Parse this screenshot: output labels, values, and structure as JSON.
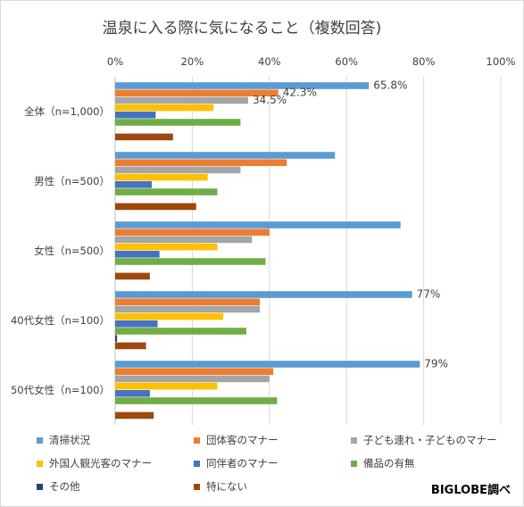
{
  "chart_data": {
    "type": "bar",
    "orientation": "horizontal",
    "title": "温泉に入る際に気になること（複数回答)",
    "categories": [
      "全体（n=1,000）",
      "男性（n=500）",
      "女性（n=500）",
      "40代女性（n=100）",
      "50代女性（n=100）"
    ],
    "xlim": [
      0,
      100
    ],
    "x_ticks": [
      "0%",
      "20%",
      "40%",
      "60%",
      "80%",
      "100%"
    ],
    "grid": true,
    "legend_position": "bottom",
    "series": [
      {
        "name": "清掃状況",
        "color": "#5b9bd5",
        "values": [
          65.8,
          57,
          74,
          77,
          79
        ]
      },
      {
        "name": "団体客のマナー",
        "color": "#ed7d31",
        "values": [
          42.3,
          44.5,
          40,
          37.5,
          41
        ]
      },
      {
        "name": "子ども連れ・子どものマナー",
        "color": "#a5a5a5",
        "values": [
          34.5,
          32.5,
          35.5,
          37.5,
          40
        ]
      },
      {
        "name": "外国人観光客のマナー",
        "color": "#ffc000",
        "values": [
          25.5,
          24,
          26.5,
          28,
          26.5
        ]
      },
      {
        "name": "同伴者のマナー",
        "color": "#4472c4",
        "values": [
          10.5,
          9.5,
          11.5,
          11,
          9
        ]
      },
      {
        "name": "備品の有無",
        "color": "#70ad47",
        "values": [
          32.5,
          26.5,
          39,
          34,
          42
        ]
      },
      {
        "name": "その他",
        "color": "#264478",
        "values": [
          0,
          0,
          0,
          0.5,
          0
        ]
      },
      {
        "name": "特にない",
        "color": "#9e480e",
        "values": [
          15,
          21,
          9,
          8,
          10
        ]
      }
    ],
    "data_labels": [
      {
        "category": 0,
        "series": 0,
        "text": "65.8%"
      },
      {
        "category": 0,
        "series": 1,
        "text": "42.3%"
      },
      {
        "category": 0,
        "series": 2,
        "text": "34.5%"
      },
      {
        "category": 3,
        "series": 0,
        "text": "77%"
      },
      {
        "category": 4,
        "series": 0,
        "text": "79%"
      }
    ]
  },
  "source_label": "BIGLOBE調べ"
}
